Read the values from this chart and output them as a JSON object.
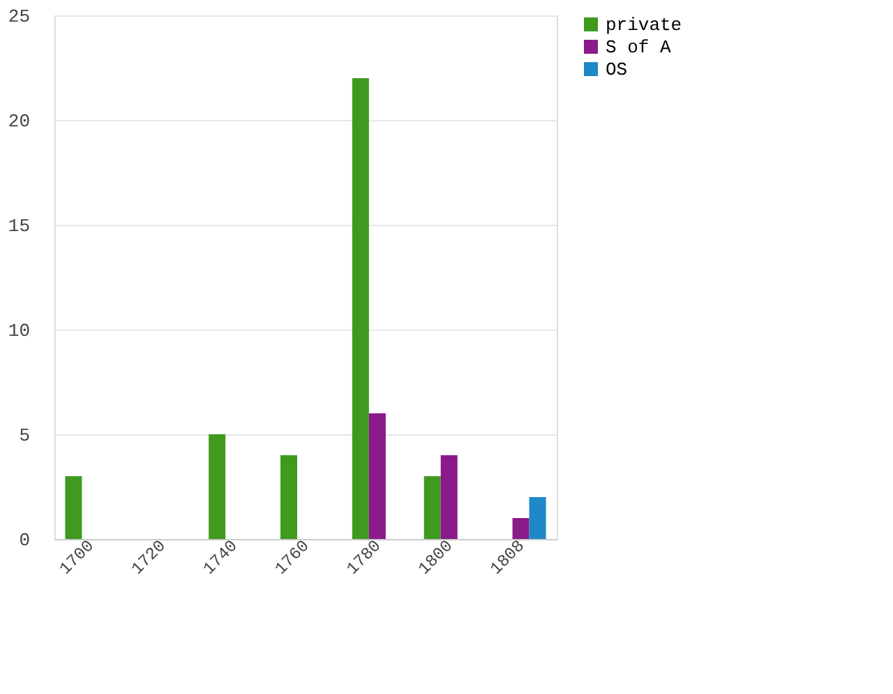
{
  "chart_data": {
    "type": "bar",
    "categories": [
      "1700",
      "1720",
      "1740",
      "1760",
      "1780",
      "1800",
      "1808"
    ],
    "series": [
      {
        "name": "private",
        "color": "#3f9a1f",
        "values": [
          3,
          null,
          5,
          4,
          22,
          3,
          null
        ]
      },
      {
        "name": "S of A",
        "color": "#8b1a8b",
        "values": [
          null,
          null,
          null,
          null,
          6,
          4,
          1
        ]
      },
      {
        "name": "OS",
        "color": "#1e88c8",
        "values": [
          null,
          null,
          null,
          null,
          null,
          null,
          2
        ]
      }
    ],
    "ylim": [
      0,
      25
    ],
    "yticks": [
      0,
      5,
      10,
      15,
      20,
      25
    ],
    "grid": "y",
    "legend": "right"
  }
}
